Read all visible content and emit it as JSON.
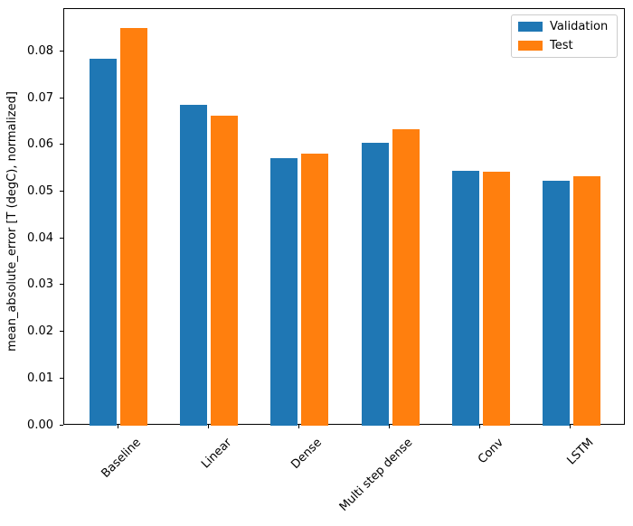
{
  "chart_data": {
    "type": "bar",
    "title": "",
    "categories": [
      "Baseline",
      "Linear",
      "Dense",
      "Multi step dense",
      "Conv",
      "LSTM"
    ],
    "series": [
      {
        "name": "Validation",
        "color": "#1f77b4",
        "values": [
          0.0785,
          0.0686,
          0.0572,
          0.0606,
          0.0545,
          0.0524
        ]
      },
      {
        "name": "Test",
        "color": "#ff7f0e",
        "values": [
          0.0852,
          0.0663,
          0.0583,
          0.0634,
          0.0543,
          0.0534
        ]
      }
    ],
    "xlabel": "",
    "ylabel": "mean_absolute_error [T (degC), normalized]",
    "ytick_labels": [
      "0.00",
      "0.01",
      "0.02",
      "0.03",
      "0.04",
      "0.05",
      "0.06",
      "0.07",
      "0.08"
    ],
    "ylim": [
      0,
      0.0892
    ],
    "grid": false,
    "legend_position": "upper right",
    "xtick_rotation_deg": 45
  }
}
